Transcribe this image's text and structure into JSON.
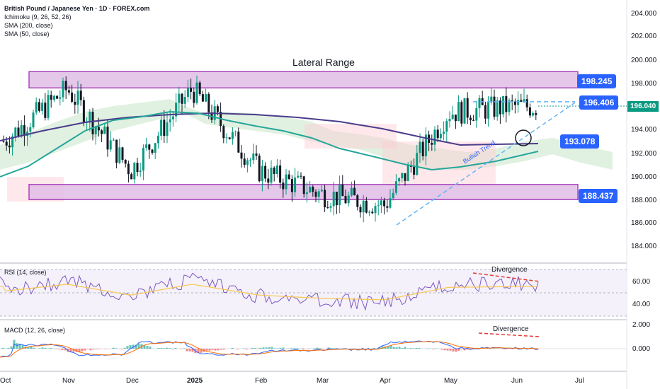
{
  "header": {
    "title": "British Pound / Japanese Yen · 1D · FOREX.com",
    "indicators": [
      "Ichimoku (9, 26, 52, 26)",
      "SMA (200, close)",
      "SMA (50, close)"
    ]
  },
  "annotations": {
    "lateral_range": "Lateral Range",
    "bullish_trend": "Bullish Trend",
    "divergence_rsi": "Divergence",
    "divergence_macd": "Divergence"
  },
  "price_tags": {
    "upper_range": "198.245",
    "recent_high": "196.406",
    "support_level": "193.078",
    "lower_range": "188.437",
    "current_price": "196.040"
  },
  "colors": {
    "range_fill": "#e1bee7",
    "range_border": "#9c27b0",
    "up": "#089981",
    "down": "#131722",
    "sma200": "#4a3c8c",
    "sma50": "#26a69a",
    "tag": "#2962ff",
    "rsi": "#7e57c2",
    "rsi_ma": "#f9c74f",
    "macd": "#2962ff",
    "signal": "#ff6d00",
    "hist_up": "#26a69a",
    "hist_down": "#ef5350"
  },
  "panels": {
    "rsi_label": "RSI (14, close)",
    "macd_label": "MACD (12, 26, close)"
  },
  "chart_data": {
    "type": "candlestick",
    "price_axis_ticks": [
      "204.000",
      "202.000",
      "200.000",
      "198.000",
      "196.000",
      "194.000",
      "192.000",
      "190.000",
      "188.000",
      "186.000",
      "184.000"
    ],
    "price_ylim": [
      183,
      205
    ],
    "rsi_axis_ticks": [
      "60.00",
      "40.00"
    ],
    "macd_axis_ticks": [
      "2.000",
      "0.000"
    ],
    "time_axis_labels": [
      "Oct",
      "Nov",
      "Dec",
      "2025",
      "Feb",
      "Mar",
      "Apr",
      "May",
      "Jun",
      "Jul"
    ],
    "levels": {
      "lateral_range_top": [
        197.6,
        199.0
      ],
      "lateral_range_bottom": [
        188.0,
        189.3
      ],
      "recent_high": 196.406,
      "support": 193.078
    },
    "approx_close_path": [
      {
        "x": "Oct",
        "y": 193.0
      },
      {
        "x": "Nov",
        "y": 197.5
      },
      {
        "x": "Dec",
        "y": 190.5
      },
      {
        "x": "2025",
        "y": 197.5
      },
      {
        "x": "Feb",
        "y": 190.5
      },
      {
        "x": "Mar",
        "y": 188.5
      },
      {
        "x": "Apr",
        "y": 187.5
      },
      {
        "x": "May",
        "y": 195.5
      },
      {
        "x": "Jun",
        "y": 196.0
      }
    ]
  }
}
